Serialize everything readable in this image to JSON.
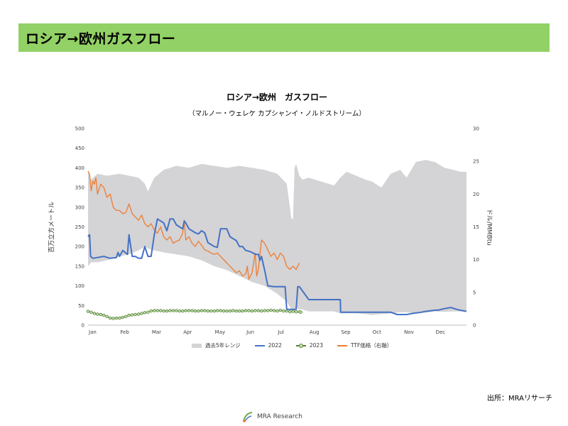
{
  "header": {
    "title": "ロシア→欧州ガスフロー"
  },
  "source_note": "出所：MRAリサーチ",
  "footer": {
    "logo_text": "MRA Research"
  },
  "colors": {
    "banner": "#92d165",
    "range": "#d4d3d5",
    "s2022": "#4472c4",
    "s2023": "#548235",
    "ttf": "#ed7d31"
  },
  "chart_data": {
    "type": "line",
    "title": "ロシア→欧州　ガスフロー",
    "subtitle": "（マルノー・ウェレケ カプシャンイ・ノルドストリーム）",
    "ylabel": "百万立方メートル",
    "y2label": "ドル/MMBtu",
    "xlim": [
      0,
      12
    ],
    "ylim": [
      0,
      500
    ],
    "y2lim": [
      0,
      30
    ],
    "x_ticks": [
      {
        "label": "Jan",
        "x": 0
      },
      {
        "label": "Feb",
        "x": 1
      },
      {
        "label": "Mar",
        "x": 2
      },
      {
        "label": "Apr",
        "x": 3
      },
      {
        "label": "May",
        "x": 4
      },
      {
        "label": "Jun",
        "x": 5
      },
      {
        "label": "Jul",
        "x": 6
      },
      {
        "label": "Aug",
        "x": 7
      },
      {
        "label": "Sep",
        "x": 8
      },
      {
        "label": "Oct",
        "x": 9
      },
      {
        "label": "Nov",
        "x": 10
      },
      {
        "label": "Dec",
        "x": 11
      }
    ],
    "y_ticks": [
      0,
      50,
      100,
      150,
      200,
      250,
      300,
      350,
      400,
      450,
      500
    ],
    "y2_ticks": [
      0,
      5,
      10,
      15,
      20,
      25,
      30
    ],
    "grid": false,
    "legend_position": "bottom",
    "legend": [
      "過去5年レンジ",
      "2022",
      "2023",
      "TTF価格（右軸）"
    ],
    "series": [
      {
        "name": "過去5年レンジ",
        "kind": "area",
        "x": [
          0,
          0.1,
          0.3,
          0.6,
          1.0,
          1.3,
          1.6,
          1.8,
          1.9,
          2.1,
          2.4,
          2.8,
          3.2,
          3.6,
          4.0,
          4.4,
          4.8,
          5.2,
          5.6,
          6.0,
          6.3,
          6.45,
          6.5,
          6.55,
          6.6,
          6.7,
          6.8,
          7.0,
          7.4,
          7.8,
          8.0,
          8.2,
          8.5,
          8.8,
          9.0,
          9.3,
          9.6,
          9.9,
          10.1,
          10.4,
          10.7,
          11.0,
          11.3,
          11.6,
          11.8,
          12.0
        ],
        "high": [
          395,
          370,
          385,
          380,
          385,
          380,
          375,
          360,
          340,
          375,
          395,
          405,
          400,
          410,
          405,
          400,
          405,
          400,
          395,
          385,
          360,
          270,
          270,
          400,
          410,
          380,
          370,
          375,
          365,
          355,
          375,
          390,
          380,
          370,
          365,
          350,
          385,
          395,
          375,
          415,
          420,
          415,
          400,
          395,
          390,
          390
        ],
        "low": [
          150,
          160,
          160,
          165,
          175,
          180,
          190,
          200,
          195,
          190,
          185,
          180,
          175,
          165,
          150,
          140,
          125,
          110,
          100,
          80,
          60,
          40,
          40,
          40,
          45,
          40,
          40,
          35,
          35,
          35,
          30,
          30,
          30,
          28,
          26,
          28,
          30,
          33,
          33,
          30,
          32,
          35,
          34,
          35,
          35,
          35
        ]
      },
      {
        "name": "2022",
        "kind": "line",
        "x": [
          0,
          0.05,
          0.08,
          0.15,
          0.3,
          0.5,
          0.7,
          0.9,
          0.95,
          1.0,
          1.1,
          1.25,
          1.3,
          1.4,
          1.5,
          1.6,
          1.7,
          1.8,
          1.9,
          2.0,
          2.1,
          2.2,
          2.3,
          2.4,
          2.5,
          2.6,
          2.7,
          2.8,
          2.9,
          3.0,
          3.05,
          3.1,
          3.2,
          3.3,
          3.4,
          3.5,
          3.6,
          3.7,
          3.8,
          3.9,
          4.0,
          4.1,
          4.2,
          4.3,
          4.4,
          4.5,
          4.6,
          4.7,
          4.8,
          4.9,
          5.0,
          5.1,
          5.2,
          5.3,
          5.4,
          5.45,
          5.5,
          5.6,
          5.7,
          5.9,
          6.0,
          6.05,
          6.1,
          6.15,
          6.2,
          6.25,
          6.3,
          6.4,
          6.6,
          6.65,
          6.7,
          7.0,
          7.3,
          7.6,
          7.8,
          8.0,
          8.01,
          8.5,
          9.0,
          9.3,
          9.6,
          9.8,
          10.0,
          10.1,
          10.3,
          10.5,
          10.7,
          10.9,
          11.0,
          11.1,
          11.3,
          11.5,
          11.7,
          11.8,
          12.0
        ],
        "y": [
          225,
          230,
          175,
          170,
          172,
          175,
          170,
          172,
          185,
          175,
          190,
          180,
          230,
          175,
          175,
          170,
          170,
          200,
          175,
          175,
          230,
          270,
          265,
          260,
          240,
          270,
          270,
          255,
          250,
          245,
          265,
          260,
          245,
          240,
          235,
          232,
          240,
          235,
          210,
          205,
          200,
          198,
          245,
          245,
          245,
          225,
          220,
          215,
          200,
          200,
          190,
          188,
          185,
          180,
          180,
          165,
          175,
          140,
          100,
          98,
          98,
          98,
          98,
          98,
          98,
          98,
          40,
          40,
          40,
          98,
          98,
          65,
          65,
          65,
          65,
          65,
          33,
          33,
          33,
          33,
          33,
          27,
          27,
          27,
          30,
          32,
          35,
          37,
          38,
          38,
          42,
          45,
          40,
          38,
          35
        ]
      },
      {
        "name": "2023",
        "kind": "marker-line",
        "x": [
          0,
          0.1,
          0.2,
          0.3,
          0.4,
          0.5,
          0.6,
          0.7,
          0.8,
          0.9,
          1.0,
          1.1,
          1.2,
          1.3,
          1.4,
          1.5,
          1.6,
          1.7,
          1.8,
          1.9,
          2.0,
          2.1,
          2.2,
          2.3,
          2.4,
          2.5,
          2.6,
          2.7,
          2.8,
          2.9,
          3.0,
          3.1,
          3.2,
          3.3,
          3.4,
          3.5,
          3.6,
          3.7,
          3.8,
          3.9,
          4.0,
          4.1,
          4.2,
          4.3,
          4.4,
          4.5,
          4.6,
          4.7,
          4.8,
          4.9,
          5.0,
          5.1,
          5.2,
          5.3,
          5.4,
          5.5,
          5.6,
          5.7,
          5.8,
          5.9,
          6.0,
          6.1,
          6.2,
          6.3,
          6.4,
          6.5,
          6.6,
          6.7,
          6.75
        ],
        "y": [
          35,
          33,
          30,
          28,
          27,
          25,
          22,
          18,
          17,
          18,
          18,
          20,
          22,
          25,
          26,
          27,
          28,
          30,
          32,
          33,
          36,
          37,
          37,
          37,
          36,
          36,
          37,
          37,
          37,
          36,
          36,
          37,
          37,
          37,
          36,
          36,
          37,
          37,
          36,
          36,
          36,
          37,
          37,
          36,
          36,
          36,
          37,
          36,
          36,
          36,
          37,
          37,
          36,
          37,
          37,
          36,
          37,
          37,
          38,
          37,
          36,
          38,
          36,
          36,
          34,
          35,
          34,
          34,
          33
        ]
      },
      {
        "name": "TTF価格（右軸）",
        "kind": "line",
        "axis": "right",
        "x": [
          0,
          0.05,
          0.1,
          0.15,
          0.2,
          0.25,
          0.3,
          0.4,
          0.5,
          0.6,
          0.7,
          0.8,
          0.9,
          1.0,
          1.1,
          1.2,
          1.3,
          1.4,
          1.5,
          1.6,
          1.7,
          1.8,
          1.9,
          2.0,
          2.1,
          2.2,
          2.3,
          2.4,
          2.5,
          2.6,
          2.7,
          2.8,
          2.9,
          3.0,
          3.05,
          3.1,
          3.2,
          3.3,
          3.4,
          3.5,
          3.6,
          3.7,
          3.8,
          3.9,
          4.0,
          4.1,
          4.2,
          4.3,
          4.4,
          4.5,
          4.6,
          4.7,
          4.8,
          4.9,
          5.0,
          5.05,
          5.1,
          5.2,
          5.3,
          5.35,
          5.4,
          5.5,
          5.6,
          5.7,
          5.8,
          5.9,
          6.0,
          6.1,
          6.2,
          6.3,
          6.4,
          6.5,
          6.6,
          6.7
        ],
        "y": [
          23.5,
          23.0,
          20.5,
          22.0,
          21.5,
          22.5,
          20.0,
          21.5,
          21.0,
          19.5,
          20.0,
          18.0,
          17.5,
          17.5,
          17.0,
          17.2,
          18.5,
          17.0,
          16.5,
          16.0,
          16.8,
          15.5,
          15.0,
          15.5,
          14.5,
          14.0,
          15.0,
          13.5,
          13.0,
          13.5,
          12.5,
          12.8,
          13.0,
          14.0,
          16.0,
          13.0,
          13.5,
          12.5,
          12.0,
          12.8,
          12.2,
          11.5,
          11.3,
          11.0,
          10.8,
          11.0,
          10.5,
          10.0,
          9.5,
          9.0,
          8.5,
          8.0,
          8.3,
          7.5,
          7.8,
          9.0,
          7.0,
          8.0,
          11.0,
          7.5,
          8.5,
          13.0,
          12.5,
          11.5,
          10.5,
          11.0,
          10.0,
          11.0,
          10.5,
          9.0,
          8.5,
          9.0,
          8.5,
          9.5
        ]
      }
    ]
  }
}
